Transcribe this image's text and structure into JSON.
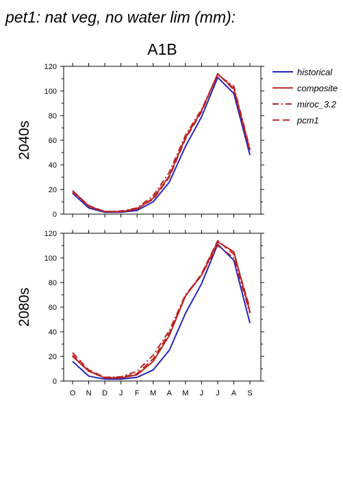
{
  "title": "pet1: nat veg, no water lim (mm):",
  "scenario": "A1B",
  "legend": [
    {
      "label": "historical",
      "color": "#2222bb",
      "dash": "solid"
    },
    {
      "label": "composite",
      "color": "#bb2222",
      "dash": "solid"
    },
    {
      "label": "miroc_3.2",
      "color": "#bb2222",
      "dash": "dashdot"
    },
    {
      "label": "pcm1",
      "color": "#bb2222",
      "dash": "dashed"
    }
  ],
  "chart_data": [
    {
      "type": "line",
      "row_label": "2040s",
      "categories": [
        "O",
        "N",
        "D",
        "J",
        "F",
        "M",
        "A",
        "M",
        "J",
        "J",
        "A",
        "S"
      ],
      "ylim": [
        0,
        120
      ],
      "yticks": [
        0,
        20,
        40,
        60,
        80,
        100,
        120
      ],
      "series": [
        {
          "name": "historical",
          "values": [
            17,
            5,
            1.5,
            1.5,
            3,
            10,
            26,
            55,
            79,
            111,
            98,
            48
          ]
        },
        {
          "name": "composite",
          "values": [
            19,
            6.5,
            2,
            2,
            4,
            13,
            31,
            62,
            84,
            114,
            102,
            52
          ]
        },
        {
          "name": "miroc_3.2",
          "values": [
            18,
            6,
            2,
            2.5,
            5,
            15,
            34,
            64,
            85,
            113,
            104,
            53
          ]
        },
        {
          "name": "pcm1",
          "values": [
            19,
            7,
            2,
            2,
            4.5,
            12,
            30,
            61,
            83,
            114,
            101,
            51
          ]
        }
      ]
    },
    {
      "type": "line",
      "row_label": "2080s",
      "categories": [
        "O",
        "N",
        "D",
        "J",
        "F",
        "M",
        "A",
        "M",
        "J",
        "J",
        "A",
        "S"
      ],
      "ylim": [
        0,
        120
      ],
      "yticks": [
        0,
        20,
        40,
        60,
        80,
        100,
        120
      ],
      "series": [
        {
          "name": "historical",
          "values": [
            16,
            4,
            1.5,
            1.5,
            3,
            9,
            25,
            55,
            79,
            111,
            98,
            47
          ]
        },
        {
          "name": "composite",
          "values": [
            20,
            8,
            2.5,
            2.5,
            5,
            16,
            37,
            69,
            86,
            113,
            105,
            56
          ]
        },
        {
          "name": "miroc_3.2",
          "values": [
            21,
            8,
            3,
            3.5,
            8,
            21,
            41,
            70,
            86,
            110,
            100,
            55
          ]
        },
        {
          "name": "pcm1",
          "values": [
            23,
            9,
            3,
            3,
            6,
            18,
            39,
            69,
            87,
            114,
            103,
            59
          ]
        }
      ]
    }
  ]
}
